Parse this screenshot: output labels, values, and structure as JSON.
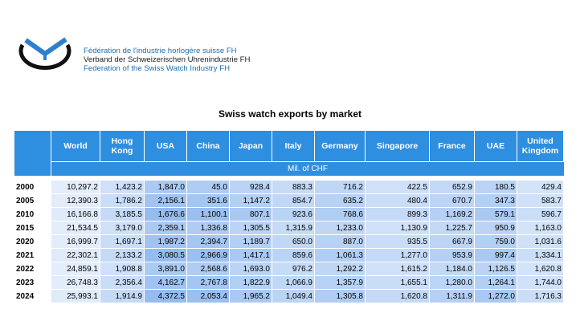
{
  "org": {
    "line_fr": "Fédération de l'industrie horlogère suisse FH",
    "line_de": "Verband der Schweizerischen Uhrenindustrie FH",
    "line_en": "Federation of the Swiss Watch Industry FH"
  },
  "colors": {
    "header_blue": "#2e8ee0",
    "logo_blue": "#2f7fd0",
    "logo_dark": "#111111"
  },
  "table": {
    "title": "Swiss watch exports by market",
    "unit": "Mil. of CHF",
    "columns": [
      "World",
      "Hong Kong",
      "USA",
      "China",
      "Japan",
      "Italy",
      "Germany",
      "Singapore",
      "France",
      "UAE",
      "United Kingdom"
    ],
    "rows": [
      {
        "year": "2000",
        "values": [
          "10,297.2",
          "1,423.2",
          "1,847.0",
          "45.0",
          "928.4",
          "883.3",
          "716.2",
          "422.5",
          "652.9",
          "180.5",
          "429.4"
        ]
      },
      {
        "year": "2005",
        "values": [
          "12,390.3",
          "1,786.2",
          "2,156.1",
          "351.6",
          "1,147.2",
          "854.7",
          "635.2",
          "480.4",
          "670.7",
          "347.3",
          "583.7"
        ]
      },
      {
        "year": "2010",
        "values": [
          "16,166.8",
          "3,185.5",
          "1,676.6",
          "1,100.1",
          "807.1",
          "923.6",
          "768.6",
          "899.3",
          "1,169.2",
          "579.1",
          "596.7"
        ]
      },
      {
        "year": "2015",
        "values": [
          "21,534.5",
          "3,179.0",
          "2,359.1",
          "1,336.8",
          "1,305.5",
          "1,315.9",
          "1,233.0",
          "1,130.9",
          "1,225.7",
          "950.9",
          "1,163.0"
        ]
      },
      {
        "year": "2020",
        "values": [
          "16,999.7",
          "1,697.1",
          "1,987.2",
          "2,394.7",
          "1,189.7",
          "650.0",
          "887.0",
          "935.5",
          "667.9",
          "759.0",
          "1,031.6"
        ]
      },
      {
        "year": "2021",
        "values": [
          "22,302.1",
          "2,133.2",
          "3,080.5",
          "2,966.9",
          "1,417.1",
          "859.6",
          "1,061.3",
          "1,277.0",
          "953.9",
          "997.4",
          "1,334.1"
        ]
      },
      {
        "year": "2022",
        "values": [
          "24,859.1",
          "1,908.8",
          "3,891.0",
          "2,568.6",
          "1,693.0",
          "976.2",
          "1,292.2",
          "1,615.2",
          "1,184.0",
          "1,126.5",
          "1,620.8"
        ]
      },
      {
        "year": "2023",
        "values": [
          "26,748.3",
          "2,356.4",
          "4,162.7",
          "2,767.8",
          "1,822.9",
          "1,066.9",
          "1,357.9",
          "1,655.1",
          "1,280.0",
          "1,264.1",
          "1,744.0"
        ]
      },
      {
        "year": "2024",
        "values": [
          "25,993.1",
          "1,914.9",
          "4,372.5",
          "2,053.4",
          "1,965.2",
          "1,049.4",
          "1,305.8",
          "1,620.8",
          "1,311.9",
          "1,272.0",
          "1,716.3"
        ]
      }
    ]
  }
}
